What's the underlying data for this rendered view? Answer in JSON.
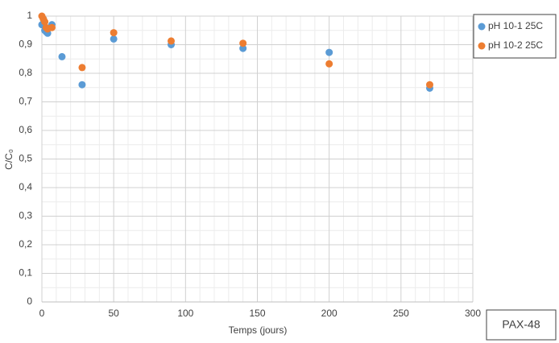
{
  "chart_data": {
    "type": "scatter",
    "xlabel": "Temps (jours)",
    "ylabel": "C/C₀",
    "annotation": "PAX-48",
    "xlim": [
      0,
      300
    ],
    "xticks": [
      0,
      50,
      100,
      150,
      200,
      250,
      300
    ],
    "ylim": [
      0,
      1
    ],
    "yticks": [
      0,
      {
        "value": 0.1,
        "label": "0,1"
      },
      {
        "value": 0.2,
        "label": "0,2"
      },
      {
        "value": 0.3,
        "label": "0,3"
      },
      {
        "value": 0.4,
        "label": "0,4"
      },
      {
        "value": 0.5,
        "label": "0,5"
      },
      {
        "value": 0.6,
        "label": "0,6"
      },
      {
        "value": 0.7,
        "label": "0,7"
      },
      {
        "value": 0.8,
        "label": "0,8"
      },
      {
        "value": 0.9,
        "label": "0,9"
      },
      1
    ],
    "grid": true,
    "minor_grid": true,
    "legend": "right",
    "series": [
      {
        "name": "pH 10-1 25C",
        "color": "#5b9bd5",
        "x": [
          0,
          1,
          2,
          3,
          4,
          7,
          14,
          28,
          50,
          90,
          140,
          200,
          270
        ],
        "values": [
          0.97,
          0.99,
          0.95,
          0.945,
          0.94,
          0.97,
          0.858,
          0.76,
          0.92,
          0.9,
          0.887,
          0.873,
          0.748
        ]
      },
      {
        "name": "pH 10-2 25C",
        "color": "#ed7d31",
        "x": [
          0,
          1,
          2,
          3,
          4,
          7,
          28,
          50,
          90,
          140,
          200,
          270
        ],
        "values": [
          1,
          0.99,
          0.98,
          0.96,
          0.955,
          0.96,
          0.82,
          0.942,
          0.913,
          0.905,
          0.833,
          0.76
        ]
      }
    ]
  }
}
